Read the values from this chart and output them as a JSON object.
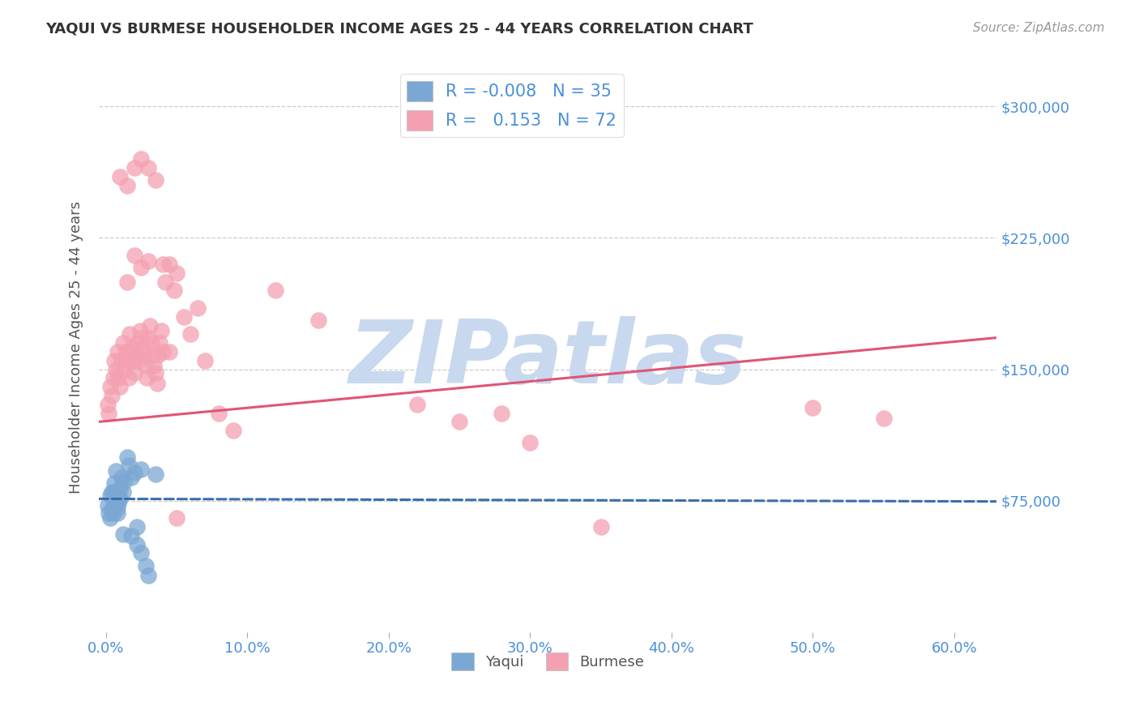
{
  "title": "YAQUI VS BURMESE HOUSEHOLDER INCOME AGES 25 - 44 YEARS CORRELATION CHART",
  "source": "Source: ZipAtlas.com",
  "ylabel": "Householder Income Ages 25 - 44 years",
  "xlabel_ticks": [
    "0.0%",
    "10.0%",
    "20.0%",
    "30.0%",
    "40.0%",
    "50.0%",
    "60.0%"
  ],
  "ytick_labels": [
    "$75,000",
    "$150,000",
    "$225,000",
    "$300,000"
  ],
  "ytick_values": [
    75000,
    150000,
    225000,
    300000
  ],
  "ymin": 0,
  "ymax": 325000,
  "xmin": -0.005,
  "xmax": 0.63,
  "yaqui_color": "#7ba7d4",
  "burmese_color": "#f4a0b0",
  "yaqui_line_color": "#3a6fa8",
  "burmese_line_color": "#e05575",
  "watermark": "ZIPatlas",
  "watermark_color": "#c8d8ee",
  "R_yaqui": -0.008,
  "N_yaqui": 35,
  "R_burmese": 0.153,
  "N_burmese": 72,
  "yaqui_line_y": [
    76000,
    74500
  ],
  "burmese_line_y": [
    120000,
    168000
  ],
  "yaqui_x": [
    0.001,
    0.002,
    0.003,
    0.003,
    0.004,
    0.004,
    0.005,
    0.005,
    0.006,
    0.006,
    0.007,
    0.007,
    0.008,
    0.008,
    0.009,
    0.009,
    0.01,
    0.01,
    0.011,
    0.012,
    0.013,
    0.015,
    0.016,
    0.018,
    0.02,
    0.022,
    0.025,
    0.028,
    0.03,
    0.035,
    0.018,
    0.022,
    0.025,
    0.012,
    0.008
  ],
  "yaqui_y": [
    72000,
    68000,
    65000,
    78000,
    70000,
    80000,
    72000,
    68000,
    80000,
    85000,
    78000,
    92000,
    71000,
    68000,
    74000,
    78000,
    82000,
    76000,
    88000,
    80000,
    86000,
    100000,
    95000,
    88000,
    91000,
    50000,
    45000,
    38000,
    32000,
    90000,
    55000,
    60000,
    93000,
    56000,
    75000
  ],
  "burmese_x": [
    0.001,
    0.002,
    0.003,
    0.004,
    0.005,
    0.006,
    0.007,
    0.008,
    0.009,
    0.01,
    0.011,
    0.012,
    0.013,
    0.014,
    0.015,
    0.016,
    0.017,
    0.018,
    0.019,
    0.02,
    0.021,
    0.022,
    0.023,
    0.024,
    0.025,
    0.026,
    0.027,
    0.028,
    0.029,
    0.03,
    0.031,
    0.032,
    0.033,
    0.034,
    0.035,
    0.036,
    0.037,
    0.038,
    0.039,
    0.04,
    0.042,
    0.045,
    0.048,
    0.05,
    0.055,
    0.06,
    0.065,
    0.07,
    0.08,
    0.09,
    0.01,
    0.015,
    0.02,
    0.025,
    0.03,
    0.035,
    0.04,
    0.045,
    0.22,
    0.25,
    0.015,
    0.02,
    0.025,
    0.03,
    0.28,
    0.3,
    0.35,
    0.5,
    0.55,
    0.12,
    0.15,
    0.05
  ],
  "burmese_y": [
    130000,
    125000,
    140000,
    135000,
    145000,
    155000,
    150000,
    160000,
    145000,
    140000,
    155000,
    165000,
    150000,
    160000,
    155000,
    145000,
    170000,
    162000,
    155000,
    148000,
    158000,
    165000,
    155000,
    172000,
    168000,
    162000,
    158000,
    152000,
    145000,
    168000,
    175000,
    165000,
    158000,
    152000,
    148000,
    142000,
    158000,
    165000,
    172000,
    160000,
    200000,
    210000,
    195000,
    205000,
    180000,
    170000,
    185000,
    155000,
    125000,
    115000,
    260000,
    255000,
    265000,
    270000,
    265000,
    258000,
    210000,
    160000,
    130000,
    120000,
    200000,
    215000,
    208000,
    212000,
    125000,
    108000,
    60000,
    128000,
    122000,
    195000,
    178000,
    65000
  ]
}
